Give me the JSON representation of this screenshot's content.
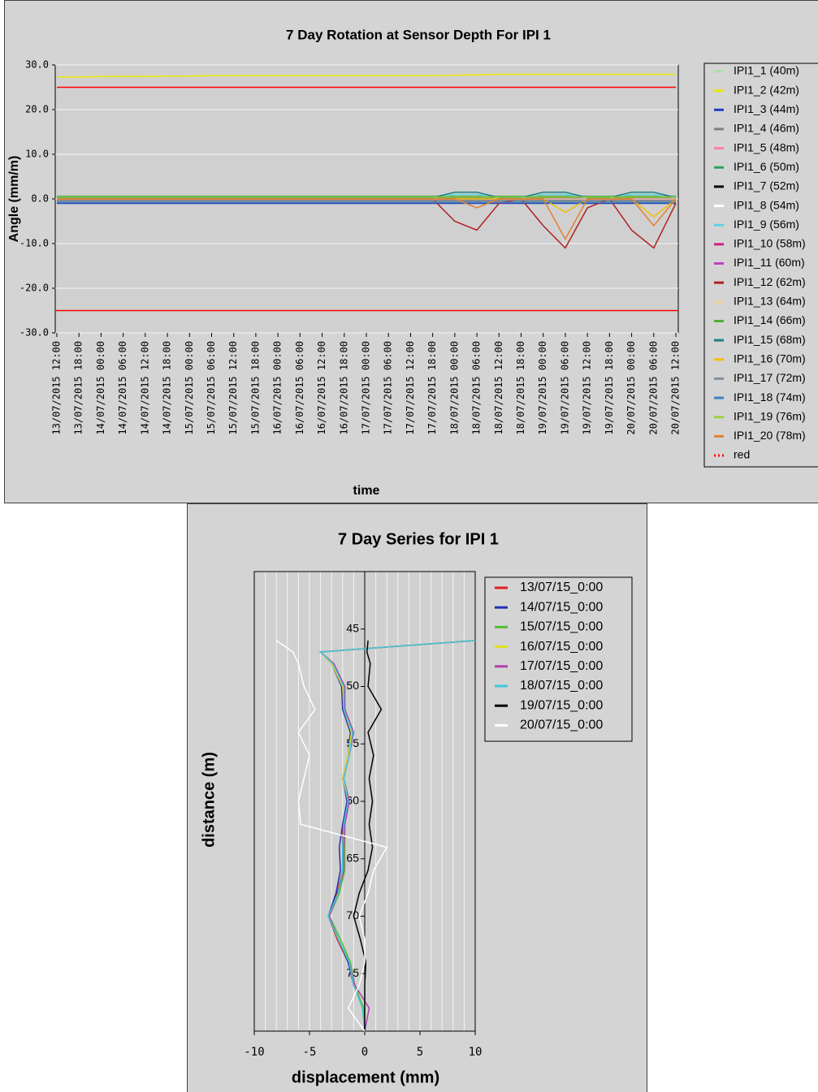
{
  "chart_data": [
    {
      "type": "line",
      "title": "7 Day Rotation at Sensor Depth For IPI 1",
      "x_label": "time",
      "y_label": "Angle (mm/m)",
      "categories": [
        "13/07/2015 12:00",
        "13/07/2015 18:00",
        "14/07/2015 00:00",
        "14/07/2015 06:00",
        "14/07/2015 12:00",
        "14/07/2015 18:00",
        "15/07/2015 00:00",
        "15/07/2015 06:00",
        "15/07/2015 12:00",
        "15/07/2015 18:00",
        "16/07/2015 00:00",
        "16/07/2015 06:00",
        "16/07/2015 12:00",
        "16/07/2015 18:00",
        "17/07/2015 00:00",
        "17/07/2015 06:00",
        "17/07/2015 12:00",
        "17/07/2015 18:00",
        "18/07/2015 00:00",
        "18/07/2015 06:00",
        "18/07/2015 12:00",
        "18/07/2015 18:00",
        "19/07/2015 00:00",
        "19/07/2015 06:00",
        "19/07/2015 12:00",
        "19/07/2015 18:00",
        "20/07/2015 00:00",
        "20/07/2015 06:00",
        "20/07/2015 12:00"
      ],
      "ylim": [
        -30,
        30
      ],
      "yticks": [
        {
          "value": -30,
          "label": "-30.0"
        },
        {
          "value": -20,
          "label": "-20.0"
        },
        {
          "value": -10,
          "label": "-10.0"
        },
        {
          "value": 0,
          "label": "0.0"
        },
        {
          "value": 10,
          "label": "10.0"
        },
        {
          "value": 20,
          "label": "20.0"
        },
        {
          "value": 30,
          "label": "30.0"
        }
      ],
      "grid": true,
      "hlines": [
        {
          "value": -25,
          "color": "#ff0000"
        }
      ],
      "series": [
        {
          "name": "IPI1_1 (40m)",
          "color": "#a8e0a8",
          "values": [
            0.3,
            0.3,
            0.3,
            0.3,
            0.3,
            0.3,
            0.3,
            0.3,
            0.3,
            0.3,
            0.3,
            0.3,
            0.3,
            0.3,
            0.3,
            0.3,
            0.3,
            0.3,
            0.3,
            0.3,
            0.3,
            0.3,
            0.3,
            0.3,
            0.3,
            0.3,
            0.3,
            0.3,
            0.3
          ]
        },
        {
          "name": "IPI1_2 (42m)",
          "color": "#e8e800",
          "values": [
            27.3,
            27.3,
            27.4,
            27.4,
            27.4,
            27.5,
            27.5,
            27.6,
            27.6,
            27.6,
            27.6,
            27.6,
            27.6,
            27.6,
            27.6,
            27.6,
            27.6,
            27.6,
            27.7,
            27.8,
            27.9,
            27.9,
            27.9,
            27.9,
            27.9,
            27.9,
            27.9,
            27.9,
            27.9
          ]
        },
        {
          "name": "IPI1_3 (44m)",
          "color": "#2040c0",
          "values": [
            -1,
            -1,
            -1,
            -1,
            -1,
            -1,
            -1,
            -1,
            -1,
            -1,
            -1,
            -1,
            -1,
            -1,
            -1,
            -1,
            -1,
            -1,
            -1,
            -1,
            -1,
            -1,
            -1,
            -1,
            -1,
            -1,
            -1,
            -1,
            -1
          ]
        },
        {
          "name": "IPI1_4 (46m)",
          "color": "#808080",
          "values": [
            -0.5,
            -0.5,
            -0.5,
            -0.5,
            -0.5,
            -0.5,
            -0.5,
            -0.5,
            -0.5,
            -0.5,
            -0.5,
            -0.5,
            -0.5,
            -0.5,
            -0.5,
            -0.5,
            -0.5,
            -0.5,
            -0.5,
            -0.5,
            -0.5,
            -0.5,
            -0.5,
            -0.5,
            -0.5,
            -0.5,
            -0.5,
            -0.5,
            -0.5
          ]
        },
        {
          "name": "IPI1_5 (48m)",
          "color": "#ff80a0",
          "values": [
            0,
            0,
            0,
            0,
            0,
            0,
            0,
            0,
            0,
            0,
            0,
            0,
            0,
            0,
            0,
            0,
            0,
            0,
            0,
            0,
            0,
            0,
            0,
            0,
            0,
            0,
            0,
            0,
            0
          ]
        },
        {
          "name": "IPI1_6 (50m)",
          "color": "#30a060",
          "values": [
            0.6,
            0.6,
            0.6,
            0.6,
            0.6,
            0.6,
            0.6,
            0.6,
            0.6,
            0.6,
            0.6,
            0.6,
            0.6,
            0.6,
            0.6,
            0.6,
            0.6,
            0.6,
            0.6,
            0.6,
            0.6,
            0.6,
            0.6,
            0.6,
            0.6,
            0.6,
            0.6,
            0.6,
            0.6
          ]
        },
        {
          "name": "IPI1_7 (52m)",
          "color": "#000000",
          "values": [
            0.1,
            0.1,
            0.1,
            0.1,
            0.1,
            0.1,
            0.1,
            0.1,
            0.1,
            0.1,
            0.1,
            0.1,
            0.1,
            0.1,
            0.1,
            0.1,
            0.1,
            0.1,
            0.1,
            0.1,
            0.1,
            0.1,
            0.1,
            0.1,
            0.1,
            0.1,
            0.1,
            0.1,
            0.1
          ]
        },
        {
          "name": "IPI1_8 (54m)",
          "color": "#ffffff",
          "values": [
            -0.2,
            -0.2,
            -0.2,
            -0.2,
            -0.2,
            -0.2,
            -0.2,
            -0.2,
            -0.2,
            -0.2,
            -0.2,
            -0.2,
            -0.2,
            -0.2,
            -0.2,
            -0.2,
            -0.2,
            -0.2,
            -0.2,
            -0.2,
            -0.2,
            -0.2,
            -0.2,
            -0.2,
            -0.2,
            -0.2,
            -0.2,
            -0.2,
            -0.2
          ]
        },
        {
          "name": "IPI1_9 (56m)",
          "color": "#60d0e0",
          "values": [
            0.2,
            0.2,
            0.2,
            0.2,
            0.2,
            0.2,
            0.2,
            0.2,
            0.2,
            0.2,
            0.2,
            0.2,
            0.2,
            0.2,
            0.2,
            0.2,
            0.2,
            0.2,
            1,
            1,
            0.2,
            0.2,
            1,
            1,
            0.2,
            0.2,
            1,
            1,
            0.2
          ]
        },
        {
          "name": "IPI1_10 (58m)",
          "color": "#d02080",
          "values": [
            0,
            0,
            0,
            0,
            0,
            0,
            0,
            0,
            0,
            0,
            0,
            0,
            0,
            0,
            0,
            0,
            0,
            0,
            0,
            0,
            0,
            0,
            0,
            0,
            0,
            0,
            0,
            0,
            0
          ]
        },
        {
          "name": "IPI1_11 (60m)",
          "color": "#c040c0",
          "values": [
            0,
            0,
            0,
            0,
            0,
            0,
            0,
            0,
            0,
            0,
            0,
            0,
            0,
            0,
            0,
            0,
            0,
            0,
            0,
            0,
            0,
            0,
            0,
            0,
            0,
            0,
            0,
            0,
            0
          ]
        },
        {
          "name": "IPI1_12 (62m)",
          "color": "#b02020",
          "values": [
            0,
            0,
            0,
            0,
            0,
            0,
            0,
            0,
            0,
            0,
            0,
            0,
            0,
            0,
            0,
            0,
            0,
            0,
            -5,
            -7,
            -1,
            0,
            -6,
            -11,
            -2,
            0,
            -7,
            -11,
            -1
          ]
        },
        {
          "name": "IPI1_13 (64m)",
          "color": "#f0d0a0",
          "values": [
            0,
            0,
            0,
            0,
            0,
            0,
            0,
            0,
            0,
            0,
            0,
            0,
            0,
            0,
            0,
            0,
            0,
            0,
            0,
            0,
            0,
            0,
            0,
            0,
            0,
            0,
            0,
            0,
            0
          ]
        },
        {
          "name": "IPI1_14 (66m)",
          "color": "#50b030",
          "values": [
            0.5,
            0.5,
            0.5,
            0.5,
            0.5,
            0.5,
            0.5,
            0.5,
            0.5,
            0.5,
            0.5,
            0.5,
            0.5,
            0.5,
            0.5,
            0.5,
            0.5,
            0.5,
            0.5,
            0.5,
            0.5,
            0.5,
            0.5,
            0.5,
            0.5,
            0.5,
            0.5,
            0.5,
            0.5
          ]
        },
        {
          "name": "IPI1_15 (68m)",
          "color": "#208080",
          "values": [
            0.3,
            0.3,
            0.3,
            0.3,
            0.3,
            0.3,
            0.3,
            0.3,
            0.3,
            0.3,
            0.3,
            0.3,
            0.3,
            0.3,
            0.3,
            0.3,
            0.3,
            0.3,
            1.5,
            1.5,
            0.3,
            0.3,
            1.5,
            1.5,
            0.3,
            0.3,
            1.5,
            1.5,
            0.3
          ]
        },
        {
          "name": "IPI1_16 (70m)",
          "color": "#f0c000",
          "values": [
            0,
            0,
            0,
            0,
            0,
            0,
            0,
            0,
            0,
            0,
            0,
            0,
            0,
            0,
            0,
            0,
            0,
            0,
            0,
            0,
            0,
            0,
            0,
            -3,
            0,
            0,
            0,
            -4,
            0
          ]
        },
        {
          "name": "IPI1_17 (72m)",
          "color": "#8090a0",
          "values": [
            -0.3,
            -0.3,
            -0.3,
            -0.3,
            -0.3,
            -0.3,
            -0.3,
            -0.3,
            -0.3,
            -0.3,
            -0.3,
            -0.3,
            -0.3,
            -0.3,
            -0.3,
            -0.3,
            -0.3,
            -0.3,
            -0.3,
            -0.3,
            -0.3,
            -0.3,
            -0.3,
            -0.3,
            -0.3,
            -0.3,
            -0.3,
            -0.3,
            -0.3
          ]
        },
        {
          "name": "IPI1_18 (74m)",
          "color": "#4080c0",
          "values": [
            -0.8,
            -0.8,
            -0.8,
            -0.8,
            -0.8,
            -0.8,
            -0.8,
            -0.8,
            -0.8,
            -0.8,
            -0.8,
            -0.8,
            -0.8,
            -0.8,
            -0.8,
            -0.8,
            -0.8,
            -0.8,
            -0.8,
            -0.8,
            -0.8,
            -0.8,
            -0.8,
            -0.8,
            -0.8,
            -0.8,
            -0.8,
            -0.8,
            -0.8
          ]
        },
        {
          "name": "IPI1_19 (76m)",
          "color": "#a0d040",
          "values": [
            0.4,
            0.4,
            0.4,
            0.4,
            0.4,
            0.4,
            0.4,
            0.4,
            0.4,
            0.4,
            0.4,
            0.4,
            0.4,
            0.4,
            0.4,
            0.4,
            0.4,
            0.4,
            0.4,
            0.4,
            0.4,
            0.4,
            0.4,
            0.4,
            0.4,
            0.4,
            0.4,
            0.4,
            0.4
          ]
        },
        {
          "name": "IPI1_20 (78m)",
          "color": "#e08030",
          "values": [
            0,
            0,
            0,
            0,
            0,
            0,
            0,
            0,
            0,
            0,
            0,
            0,
            0,
            0,
            0,
            0,
            0,
            0,
            0,
            -2,
            0,
            0,
            0,
            -9,
            0,
            0,
            0,
            -6,
            0
          ]
        },
        {
          "name": "red",
          "color": "#ff0000",
          "legend_style": "dotted",
          "values": [
            25,
            25,
            25,
            25,
            25,
            25,
            25,
            25,
            25,
            25,
            25,
            25,
            25,
            25,
            25,
            25,
            25,
            25,
            25,
            25,
            25,
            25,
            25,
            25,
            25,
            25,
            25,
            25,
            25
          ]
        }
      ]
    },
    {
      "type": "profile",
      "title": "7 Day Series for IPI 1",
      "x_label": "displacement (mm)",
      "y_label": "distance (m)",
      "xlim": [
        -10,
        10
      ],
      "xticks": [
        -10,
        -5,
        0,
        5,
        10
      ],
      "minor_grid_step": 1,
      "ylim": [
        40,
        80
      ],
      "yticks": [
        45,
        50,
        55,
        60,
        65,
        70,
        75
      ],
      "y_inverted": true,
      "y": [
        46,
        47,
        48,
        50,
        52,
        54,
        56,
        58,
        60,
        62,
        64,
        66,
        68,
        70,
        72,
        74,
        76,
        78,
        80
      ],
      "series": [
        {
          "name": "13/07/15_0:00",
          "color": "#e02020",
          "values": [
            10,
            -4,
            -3,
            -2,
            -2,
            -1.2,
            -1.5,
            -2,
            -1.5,
            -2,
            -2,
            -2,
            -2.5,
            -3.3,
            -2.5,
            -1.5,
            -1,
            -0.2,
            0
          ]
        },
        {
          "name": "14/07/15_0:00",
          "color": "#2030b0",
          "values": [
            10,
            -4,
            -3,
            -2.1,
            -2,
            -1.3,
            -1.5,
            -2,
            -1.6,
            -2,
            -2.3,
            -2.2,
            -2.6,
            -3.3,
            -2.4,
            -1.5,
            -1,
            -0.1,
            0
          ]
        },
        {
          "name": "15/07/15_0:00",
          "color": "#50c030",
          "values": [
            10,
            -4,
            -3,
            -1.9,
            -1.8,
            -1.1,
            -1.4,
            -1.9,
            -1.4,
            -1.8,
            -1.8,
            -1.8,
            -2.3,
            -3.2,
            -2.2,
            -1.3,
            -0.9,
            -0.1,
            0
          ]
        },
        {
          "name": "16/07/15_0:00",
          "color": "#e0e020",
          "values": [
            10,
            -4,
            -3,
            -2,
            -1.9,
            -1.2,
            -1.5,
            -2,
            -1.5,
            -1.9,
            -1.9,
            -1.9,
            -2.4,
            -3.3,
            -2.4,
            -1.4,
            -1,
            -0.2,
            0
          ]
        },
        {
          "name": "17/07/15_0:00",
          "color": "#b040b0",
          "values": [
            10,
            -4,
            -2.8,
            -1.8,
            -1.8,
            -1,
            -1.4,
            -1.9,
            -1.4,
            -1.8,
            -1.9,
            -1.9,
            -2.4,
            -3.2,
            -2.4,
            -1.4,
            -0.9,
            0.4,
            0
          ]
        },
        {
          "name": "18/07/15_0:00",
          "color": "#40c8d8",
          "values": [
            10,
            -4,
            -2.9,
            -1.9,
            -1.9,
            -1.1,
            -1.4,
            -1.9,
            -1.5,
            -1.9,
            -2,
            -2,
            -2.4,
            -3.3,
            -2.4,
            -1.4,
            -1,
            -0.2,
            0
          ]
        },
        {
          "name": "19/07/15_0:00",
          "color": "#000000",
          "values": [
            0.3,
            0.2,
            0.5,
            0.3,
            1.5,
            0.3,
            0.8,
            0.4,
            0.7,
            0.4,
            0.7,
            0.3,
            -0.5,
            -1,
            -0.4,
            0.1,
            0,
            0,
            0
          ]
        },
        {
          "name": "20/07/15_0:00",
          "color": "#ffffff",
          "values": [
            -8,
            -6.5,
            -6,
            -5.5,
            -4.5,
            -6,
            -5,
            -5.5,
            -6,
            -5.8,
            2,
            0.8,
            0.3,
            -0.5,
            0,
            0,
            -0.5,
            -1.5,
            0
          ]
        }
      ]
    }
  ]
}
